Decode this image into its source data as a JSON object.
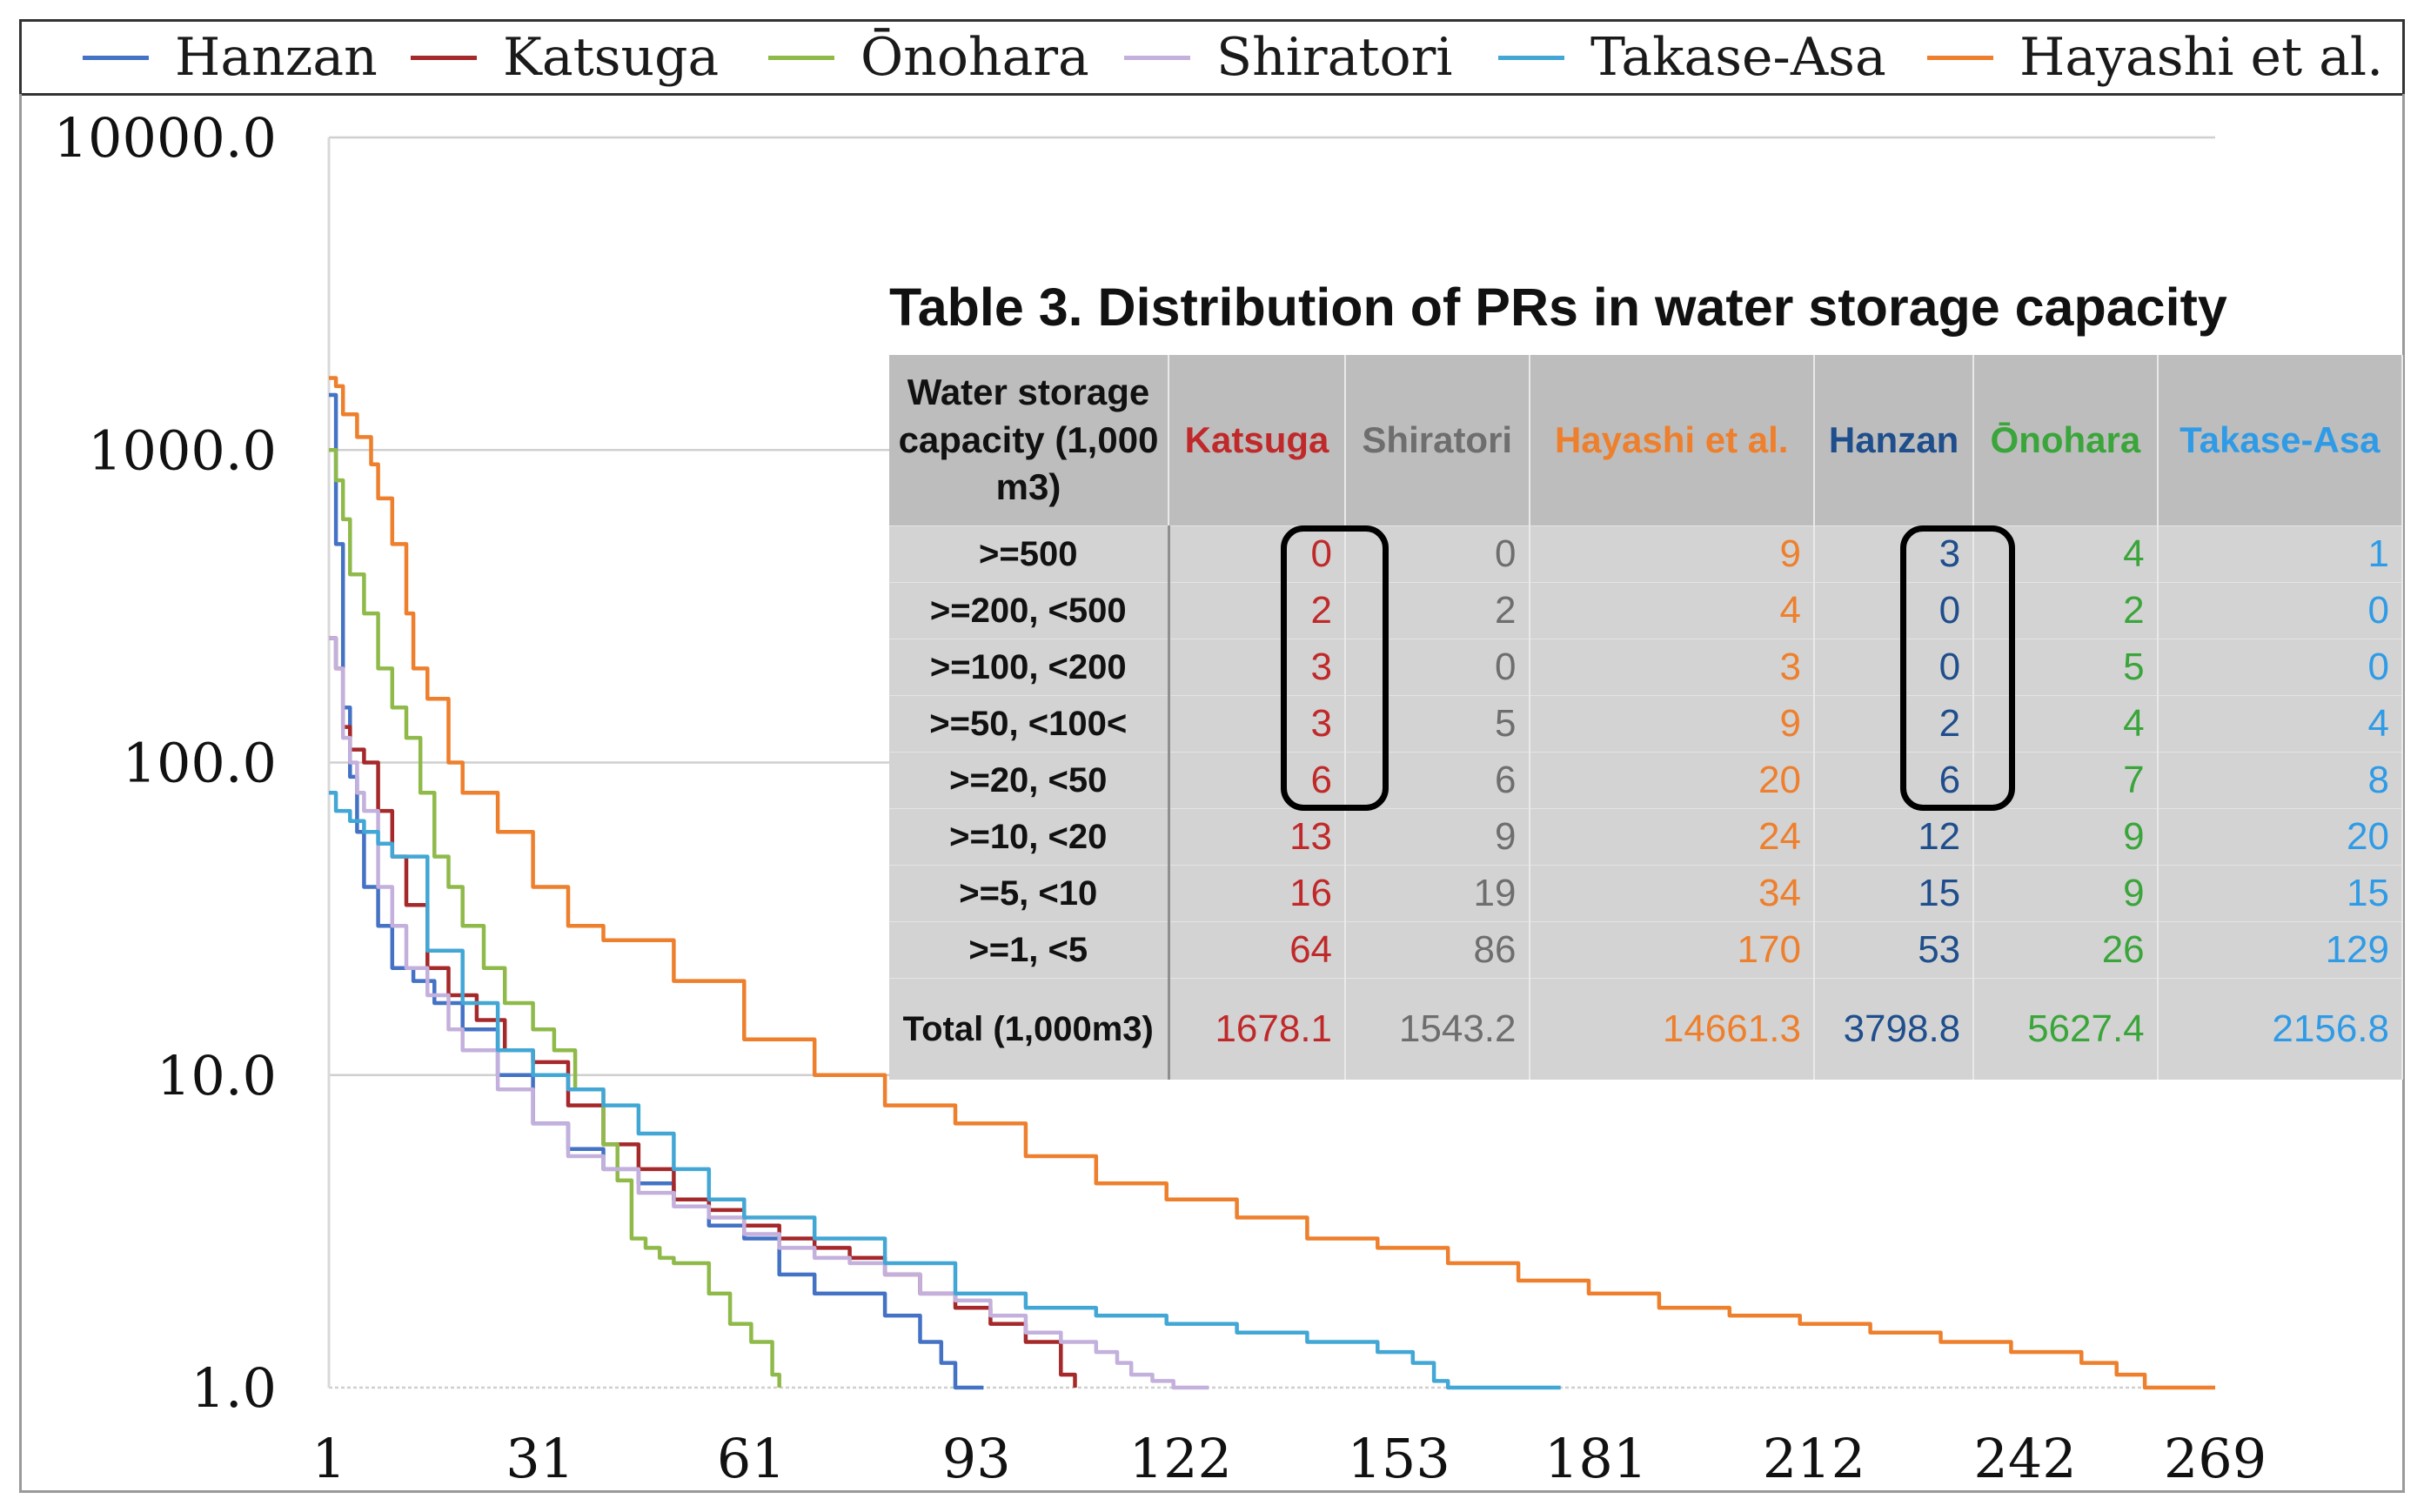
{
  "chart_data": {
    "type": "line",
    "title": "",
    "xlabel": "",
    "ylabel": "",
    "y_scale": "log",
    "ylim": [
      1,
      10000
    ],
    "xlim": [
      1,
      269
    ],
    "x_ticks": [
      "1",
      "31",
      "61",
      "93",
      "122",
      "153",
      "181",
      "212",
      "242",
      "269"
    ],
    "y_ticks": [
      "10000.0",
      "1000.0",
      "100.0",
      "10.0",
      "1.0"
    ],
    "grid": "horizontal",
    "legend_position": "top",
    "series": [
      {
        "name": "Hanzan",
        "color": "#4472c4",
        "x": [
          1,
          2,
          3,
          4,
          5,
          6,
          8,
          10,
          13,
          16,
          20,
          25,
          30,
          35,
          40,
          45,
          50,
          55,
          60,
          65,
          70,
          75,
          80,
          85,
          88,
          90,
          94
        ],
        "y": [
          1500,
          500,
          150,
          90,
          60,
          40,
          30,
          22,
          20,
          17,
          14,
          10,
          7,
          5.8,
          5,
          4.5,
          4,
          3.3,
          3,
          2.3,
          2,
          2,
          1.7,
          1.4,
          1.2,
          1,
          1
        ]
      },
      {
        "name": "Katsuga",
        "color": "#a5282a",
        "x": [
          1,
          2,
          3,
          4,
          6,
          8,
          10,
          12,
          15,
          18,
          22,
          26,
          30,
          35,
          40,
          45,
          50,
          55,
          60,
          65,
          70,
          75,
          80,
          85,
          90,
          95,
          100,
          105,
          107
        ],
        "y": [
          250,
          200,
          130,
          110,
          100,
          70,
          50,
          35,
          22,
          18,
          15,
          12,
          11,
          8,
          6,
          5,
          4,
          3.7,
          3.3,
          3,
          2.8,
          2.6,
          2.3,
          2,
          1.8,
          1.6,
          1.4,
          1.1,
          1
        ]
      },
      {
        "name": "Ōnohara",
        "color": "#8fba4a",
        "x": [
          1,
          2,
          3,
          4,
          5,
          6,
          8,
          10,
          12,
          14,
          16,
          18,
          20,
          23,
          26,
          30,
          33,
          36,
          40,
          42,
          44,
          46,
          48,
          50,
          55,
          58,
          61,
          64,
          65
        ],
        "y": [
          1000,
          800,
          600,
          400,
          400,
          300,
          200,
          150,
          120,
          80,
          50,
          40,
          30,
          22,
          17,
          14,
          12,
          9,
          6,
          4.6,
          3,
          2.8,
          2.6,
          2.5,
          2,
          1.6,
          1.4,
          1.1,
          1
        ]
      },
      {
        "name": "Shiratori",
        "color": "#c3b0dc",
        "x": [
          1,
          2,
          3,
          4,
          5,
          6,
          8,
          10,
          12,
          15,
          18,
          20,
          25,
          30,
          35,
          40,
          45,
          50,
          55,
          60,
          65,
          70,
          75,
          80,
          85,
          90,
          95,
          100,
          105,
          110,
          113,
          115,
          118,
          121,
          124,
          126
        ],
        "y": [
          250,
          200,
          120,
          100,
          80,
          70,
          40,
          30,
          22,
          18,
          14,
          12,
          9,
          7,
          5.5,
          5,
          4.2,
          3.8,
          3.5,
          3.1,
          2.8,
          2.6,
          2.5,
          2.3,
          2,
          1.9,
          1.7,
          1.5,
          1.4,
          1.3,
          1.2,
          1.1,
          1.05,
          1,
          1,
          1
        ]
      },
      {
        "name": "Takase-Asa",
        "color": "#43a7d6",
        "x": [
          1,
          2,
          4,
          6,
          8,
          10,
          15,
          20,
          25,
          30,
          35,
          40,
          45,
          50,
          55,
          60,
          70,
          80,
          90,
          100,
          110,
          120,
          130,
          140,
          150,
          155,
          158,
          160,
          165,
          170,
          176
        ],
        "y": [
          80,
          70,
          65,
          60,
          55,
          50,
          25,
          17,
          12,
          10,
          9,
          8,
          6.5,
          5,
          4,
          3.5,
          3,
          2.5,
          2,
          1.8,
          1.7,
          1.6,
          1.5,
          1.4,
          1.3,
          1.2,
          1.05,
          1,
          1,
          1,
          1
        ]
      },
      {
        "name": "Hayashi et al.",
        "color": "#ee7f2c",
        "x": [
          1,
          2,
          3,
          5,
          7,
          8,
          10,
          12,
          13,
          15,
          18,
          20,
          25,
          30,
          35,
          40,
          50,
          60,
          70,
          80,
          90,
          100,
          110,
          120,
          130,
          140,
          150,
          160,
          170,
          180,
          190,
          200,
          210,
          220,
          230,
          240,
          250,
          255,
          259,
          265,
          269
        ],
        "y": [
          1700,
          1600,
          1300,
          1100,
          900,
          700,
          500,
          300,
          200,
          160,
          100,
          80,
          60,
          40,
          30,
          27,
          20,
          13,
          10,
          8,
          7,
          5.5,
          4.5,
          4,
          3.5,
          3,
          2.8,
          2.5,
          2.2,
          2,
          1.8,
          1.7,
          1.6,
          1.5,
          1.4,
          1.3,
          1.2,
          1.1,
          1,
          1,
          1
        ]
      }
    ]
  },
  "legend": {
    "items": [
      {
        "label": "Hanzan",
        "color": "#4472c4"
      },
      {
        "label": "Katsuga",
        "color": "#a5282a"
      },
      {
        "label": "Ōnohara",
        "color": "#8fba4a"
      },
      {
        "label": "Shiratori",
        "color": "#c3b0dc"
      },
      {
        "label": "Takase-Asa",
        "color": "#43a7d6"
      },
      {
        "label": "Hayashi et al.",
        "color": "#ee7f2c"
      }
    ]
  },
  "table": {
    "title": "Table 3. Distribution of PRs in water storage capacity",
    "header_first": "Water storage capacity (1,000 m3)",
    "columns": [
      {
        "label": "Katsuga",
        "color": "#c0292a"
      },
      {
        "label": "Shiratori",
        "color": "#6e6e6e"
      },
      {
        "label": "Hayashi et al.",
        "color": "#ee7f2c"
      },
      {
        "label": "Hanzan",
        "color": "#1f4e8c"
      },
      {
        "label": "Ōnohara",
        "color": "#3aa53a"
      },
      {
        "label": "Takase-Asa",
        "color": "#2f9be6"
      }
    ],
    "rows": [
      {
        "label": ">=500",
        "values": [
          "0",
          "0",
          "9",
          "3",
          "4",
          "1"
        ]
      },
      {
        "label": ">=200, <500",
        "values": [
          "2",
          "2",
          "4",
          "0",
          "2",
          "0"
        ]
      },
      {
        "label": ">=100, <200",
        "values": [
          "3",
          "0",
          "3",
          "0",
          "5",
          "0"
        ]
      },
      {
        "label": ">=50, <100<",
        "values": [
          "3",
          "5",
          "9",
          "2",
          "4",
          "4"
        ]
      },
      {
        "label": ">=20, <50",
        "values": [
          "6",
          "6",
          "20",
          "6",
          "7",
          "8"
        ]
      },
      {
        "label": ">=10, <20",
        "values": [
          "13",
          "9",
          "24",
          "12",
          "9",
          "20"
        ]
      },
      {
        "label": ">=5, <10",
        "values": [
          "16",
          "19",
          "34",
          "15",
          "9",
          "15"
        ]
      },
      {
        "label": ">=1, <5",
        "values": [
          "64",
          "86",
          "170",
          "53",
          "26",
          "129"
        ]
      }
    ],
    "total": {
      "label": "Total (1,000m3)",
      "values": [
        "1678.1",
        "1543.2",
        "14661.3",
        "3798.8",
        "5627.4",
        "2156.8"
      ]
    }
  }
}
